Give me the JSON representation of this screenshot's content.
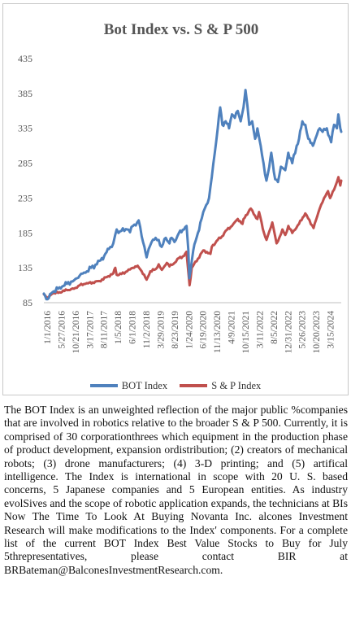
{
  "chart_data": {
    "type": "line",
    "title": "Bot Index vs. S & P 500",
    "xlabel": "",
    "ylabel": "",
    "ylim": [
      85,
      435
    ],
    "y_ticks": [
      85,
      135,
      185,
      235,
      285,
      335,
      385,
      435
    ],
    "x_tick_labels": [
      "1/1/2016",
      "5/27/2016",
      "10/21/2016",
      "3/17/2017",
      "8/11/2017",
      "1/5/2018",
      "6/1/2018",
      "11/2/2018",
      "3/29/2019",
      "8/23/2019",
      "1/24/2020",
      "6/19/2020",
      "11/13/2020",
      "4/9/2021",
      "10/15/2021",
      "3/11/2022",
      "8/5/2022",
      "12/31/2022",
      "5/26/2023",
      "10/20/2023",
      "3/15/2024"
    ],
    "x_range": [
      "2016-01-01",
      "2024-08-15"
    ],
    "grid": false,
    "legend_position": "bottom",
    "series": [
      {
        "name": "BOT Index",
        "color": "#4f81bd",
        "points": [
          [
            "2016-01-01",
            98
          ],
          [
            "2016-02-10",
            90
          ],
          [
            "2016-04-01",
            100
          ],
          [
            "2016-06-15",
            107
          ],
          [
            "2016-09-01",
            112
          ],
          [
            "2016-11-15",
            117
          ],
          [
            "2017-01-15",
            124
          ],
          [
            "2017-03-17",
            128
          ],
          [
            "2017-05-15",
            135
          ],
          [
            "2017-07-15",
            140
          ],
          [
            "2017-08-11",
            145
          ],
          [
            "2017-10-01",
            152
          ],
          [
            "2017-11-20",
            162
          ],
          [
            "2018-01-05",
            170
          ],
          [
            "2018-01-25",
            182
          ],
          [
            "2018-02-10",
            190
          ],
          [
            "2018-03-01",
            185
          ],
          [
            "2018-04-01",
            188
          ],
          [
            "2018-06-01",
            190
          ],
          [
            "2018-07-01",
            186
          ],
          [
            "2018-08-01",
            195
          ],
          [
            "2018-09-15",
            200
          ],
          [
            "2018-10-01",
            203
          ],
          [
            "2018-11-02",
            180
          ],
          [
            "2018-12-01",
            165
          ],
          [
            "2018-12-24",
            150
          ],
          [
            "2019-01-15",
            162
          ],
          [
            "2019-02-15",
            172
          ],
          [
            "2019-03-29",
            178
          ],
          [
            "2019-05-01",
            175
          ],
          [
            "2019-06-01",
            165
          ],
          [
            "2019-07-15",
            178
          ],
          [
            "2019-08-23",
            170
          ],
          [
            "2019-09-15",
            178
          ],
          [
            "2019-10-15",
            172
          ],
          [
            "2019-12-01",
            185
          ],
          [
            "2020-01-24",
            190
          ],
          [
            "2020-02-20",
            195
          ],
          [
            "2020-03-10",
            160
          ],
          [
            "2020-03-20",
            120
          ],
          [
            "2020-04-01",
            130
          ],
          [
            "2020-05-01",
            160
          ],
          [
            "2020-06-19",
            185
          ],
          [
            "2020-07-15",
            200
          ],
          [
            "2020-08-15",
            215
          ],
          [
            "2020-09-15",
            225
          ],
          [
            "2020-10-15",
            235
          ],
          [
            "2020-11-13",
            265
          ],
          [
            "2020-12-15",
            300
          ],
          [
            "2021-01-15",
            335
          ],
          [
            "2021-02-10",
            365
          ],
          [
            "2021-03-05",
            340
          ],
          [
            "2021-04-09",
            345
          ],
          [
            "2021-05-15",
            335
          ],
          [
            "2021-06-15",
            355
          ],
          [
            "2021-07-15",
            350
          ],
          [
            "2021-08-15",
            360
          ],
          [
            "2021-09-15",
            345
          ],
          [
            "2021-10-15",
            365
          ],
          [
            "2021-11-05",
            390
          ],
          [
            "2021-11-25",
            368
          ],
          [
            "2021-12-15",
            340
          ],
          [
            "2022-01-15",
            345
          ],
          [
            "2022-02-15",
            320
          ],
          [
            "2022-03-11",
            335
          ],
          [
            "2022-04-15",
            310
          ],
          [
            "2022-05-15",
            285
          ],
          [
            "2022-06-15",
            260
          ],
          [
            "2022-07-15",
            280
          ],
          [
            "2022-08-05",
            300
          ],
          [
            "2022-09-15",
            262
          ],
          [
            "2022-10-15",
            258
          ],
          [
            "2022-11-15",
            280
          ],
          [
            "2022-12-31",
            275
          ],
          [
            "2023-02-01",
            300
          ],
          [
            "2023-03-15",
            285
          ],
          [
            "2023-05-01",
            310
          ],
          [
            "2023-05-26",
            320
          ],
          [
            "2023-06-30",
            345
          ],
          [
            "2023-08-01",
            340
          ],
          [
            "2023-09-01",
            320
          ],
          [
            "2023-10-20",
            310
          ],
          [
            "2023-11-15",
            320
          ],
          [
            "2023-12-31",
            335
          ],
          [
            "2024-01-31",
            330
          ],
          [
            "2024-03-15",
            335
          ],
          [
            "2024-04-30",
            315
          ],
          [
            "2024-05-31",
            340
          ],
          [
            "2024-06-30",
            335
          ],
          [
            "2024-07-15",
            355
          ],
          [
            "2024-08-05",
            335
          ],
          [
            "2024-08-15",
            330
          ]
        ]
      },
      {
        "name": "S & P Index",
        "color": "#c0504d",
        "points": [
          [
            "2016-01-01",
            97
          ],
          [
            "2016-02-10",
            92
          ],
          [
            "2016-04-01",
            98
          ],
          [
            "2016-06-15",
            100
          ],
          [
            "2016-09-01",
            103
          ],
          [
            "2016-11-15",
            105
          ],
          [
            "2017-01-15",
            110
          ],
          [
            "2017-03-17",
            112
          ],
          [
            "2017-06-01",
            114
          ],
          [
            "2017-08-11",
            116
          ],
          [
            "2017-11-01",
            122
          ],
          [
            "2018-01-05",
            127
          ],
          [
            "2018-01-26",
            135
          ],
          [
            "2018-02-09",
            125
          ],
          [
            "2018-04-01",
            126
          ],
          [
            "2018-06-01",
            130
          ],
          [
            "2018-08-01",
            135
          ],
          [
            "2018-09-20",
            138
          ],
          [
            "2018-11-02",
            130
          ],
          [
            "2018-12-24",
            118
          ],
          [
            "2019-02-01",
            130
          ],
          [
            "2019-03-29",
            133
          ],
          [
            "2019-05-01",
            140
          ],
          [
            "2019-06-03",
            132
          ],
          [
            "2019-07-26",
            142
          ],
          [
            "2019-08-23",
            137
          ],
          [
            "2019-10-15",
            142
          ],
          [
            "2019-12-01",
            149
          ],
          [
            "2020-01-24",
            152
          ],
          [
            "2020-02-19",
            158
          ],
          [
            "2020-03-23",
            110
          ],
          [
            "2020-04-15",
            135
          ],
          [
            "2020-06-19",
            148
          ],
          [
            "2020-08-15",
            160
          ],
          [
            "2020-10-30",
            155
          ],
          [
            "2020-11-13",
            165
          ],
          [
            "2021-01-15",
            175
          ],
          [
            "2021-03-01",
            180
          ],
          [
            "2021-04-09",
            188
          ],
          [
            "2021-06-15",
            195
          ],
          [
            "2021-08-15",
            205
          ],
          [
            "2021-10-04",
            198
          ],
          [
            "2021-10-15",
            205
          ],
          [
            "2021-12-31",
            220
          ],
          [
            "2022-01-31",
            212
          ],
          [
            "2022-03-11",
            205
          ],
          [
            "2022-03-29",
            215
          ],
          [
            "2022-05-20",
            185
          ],
          [
            "2022-06-16",
            175
          ],
          [
            "2022-08-16",
            200
          ],
          [
            "2022-09-30",
            170
          ],
          [
            "2022-10-15",
            173
          ],
          [
            "2022-12-01",
            190
          ],
          [
            "2022-12-31",
            182
          ],
          [
            "2023-02-02",
            195
          ],
          [
            "2023-03-15",
            185
          ],
          [
            "2023-05-26",
            198
          ],
          [
            "2023-07-31",
            213
          ],
          [
            "2023-10-27",
            192
          ],
          [
            "2023-12-31",
            220
          ],
          [
            "2024-02-15",
            235
          ],
          [
            "2024-03-28",
            245
          ],
          [
            "2024-04-19",
            235
          ],
          [
            "2024-05-31",
            247
          ],
          [
            "2024-07-16",
            265
          ],
          [
            "2024-08-05",
            253
          ],
          [
            "2024-08-15",
            260
          ]
        ]
      }
    ]
  },
  "description": "The BOT Index is an unweighted reflection of the major public %companies that are involved in robotics relative to the broader S & P 500. Currently, it is comprised of 30 corporationthrees which equipment in the production phase of product development, expansion ordistribution; (2) creators of mechanical robots; (3) drone manufacturers; (4) 3-D printing; and (5) artifical intelligence. The Index is international in scope with 20 U. S. based concerns, 5 Japanese companies and 5 European entities. As industry evolSives and the scope of robotic application expands, the technicians at BIs Now The Time To Look At Buying Novanta Inc. alcones Investment Research will make modifications to the Index' components. For a  complete list of the current BOT Index Best Value Stocks to Buy for July 5threpresentatives, please contact BIR at BRBateman@BalconesInvestmentResearch.com."
}
